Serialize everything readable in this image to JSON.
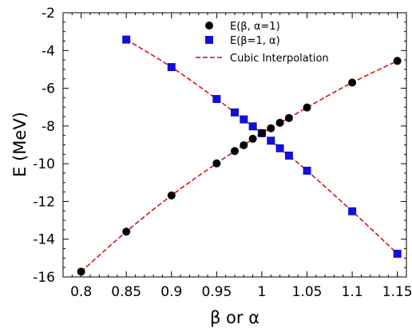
{
  "chart_data": {
    "type": "scatter",
    "xlabel": "β or α",
    "ylabel": "E (MeV)",
    "xlim": [
      0.78,
      1.16
    ],
    "ylim": [
      -16,
      -2
    ],
    "xticks": [
      0.8,
      0.85,
      0.9,
      0.95,
      1,
      1.05,
      1.1,
      1.15
    ],
    "xtick_labels": [
      "0.8",
      "0.85",
      "0.9",
      "0.95",
      "1",
      "1.05",
      "1.1",
      "1.15"
    ],
    "yticks": [
      -16,
      -14,
      -12,
      -10,
      -8,
      -6,
      -4,
      -2
    ],
    "ytick_labels": [
      "-16",
      "-14",
      "-12",
      "-10",
      "-8",
      "-6",
      "-4",
      "-2"
    ],
    "grid": false,
    "legend_position": "top-center",
    "series": [
      {
        "name": "E(β, α=1)",
        "marker": "circle",
        "color": "#000000",
        "x": [
          0.8,
          0.85,
          0.9,
          0.95,
          0.97,
          0.98,
          0.99,
          1.0,
          1.01,
          1.02,
          1.03,
          1.05,
          1.1,
          1.15
        ],
        "y": [
          -15.72,
          -13.6,
          -11.68,
          -9.98,
          -9.33,
          -9.02,
          -8.68,
          -8.38,
          -8.12,
          -7.83,
          -7.58,
          -7.02,
          -5.7,
          -4.55
        ]
      },
      {
        "name": "E(β=1, α)",
        "marker": "square",
        "color": "#1010d8",
        "x": [
          0.85,
          0.9,
          0.95,
          0.97,
          0.98,
          0.99,
          1.0,
          1.01,
          1.02,
          1.03,
          1.05,
          1.1,
          1.15
        ],
        "y": [
          -3.42,
          -4.88,
          -6.57,
          -7.28,
          -7.65,
          -8.02,
          -8.38,
          -8.78,
          -9.18,
          -9.57,
          -10.37,
          -12.52,
          -14.77
        ]
      },
      {
        "name": "Cubic Interpolation",
        "type": "line",
        "style": "dashed",
        "color": "#e00000"
      }
    ]
  }
}
